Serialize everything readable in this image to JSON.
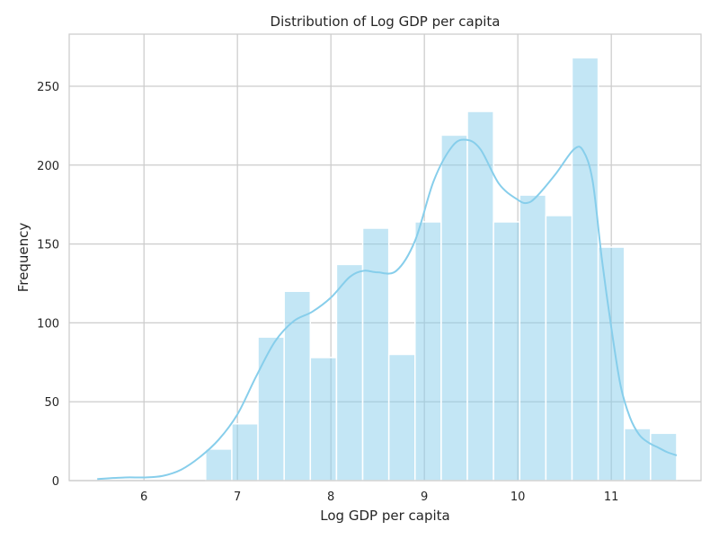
{
  "chart_data": {
    "type": "histogram",
    "title": "Distribution of Log GDP per capita",
    "xlabel": "Log GDP per capita",
    "ylabel": "Frequency",
    "xlim": [
      5.2,
      11.96
    ],
    "ylim": [
      0,
      283
    ],
    "x_ticks": [
      6,
      7,
      8,
      9,
      10,
      11
    ],
    "y_ticks": [
      0,
      50,
      100,
      150,
      200,
      250
    ],
    "grid": true,
    "bar_color": "#87ceeb",
    "bar_opacity": 0.5,
    "kde_color": "#87ceeb",
    "bin_edges": [
      6.66,
      6.94,
      7.22,
      7.5,
      7.78,
      8.06,
      8.34,
      8.62,
      8.9,
      9.18,
      9.46,
      9.74,
      10.02,
      10.3,
      10.58,
      10.86,
      11.14,
      11.42,
      11.7
    ],
    "counts": [
      20,
      36,
      91,
      120,
      78,
      137,
      160,
      80,
      164,
      219,
      234,
      164,
      181,
      168,
      268,
      148,
      33,
      30
    ],
    "kde_curve": {
      "x": [
        5.5,
        5.8,
        6.0,
        6.2,
        6.4,
        6.6,
        6.8,
        7.0,
        7.2,
        7.4,
        7.6,
        7.8,
        8.0,
        8.2,
        8.35,
        8.5,
        8.7,
        8.9,
        9.1,
        9.3,
        9.45,
        9.6,
        9.8,
        10.0,
        10.1,
        10.2,
        10.4,
        10.6,
        10.7,
        10.8,
        10.9,
        11.0,
        11.1,
        11.2,
        11.3,
        11.4,
        11.5,
        11.6,
        11.7
      ],
      "y": [
        1,
        2,
        2,
        3,
        7,
        15,
        26,
        42,
        66,
        88,
        101,
        107,
        116,
        129,
        133,
        132,
        133,
        152,
        190,
        212,
        216,
        210,
        188,
        178,
        176,
        180,
        194,
        210,
        209,
        190,
        140,
        97,
        60,
        40,
        29,
        24,
        21,
        18,
        16
      ]
    }
  }
}
